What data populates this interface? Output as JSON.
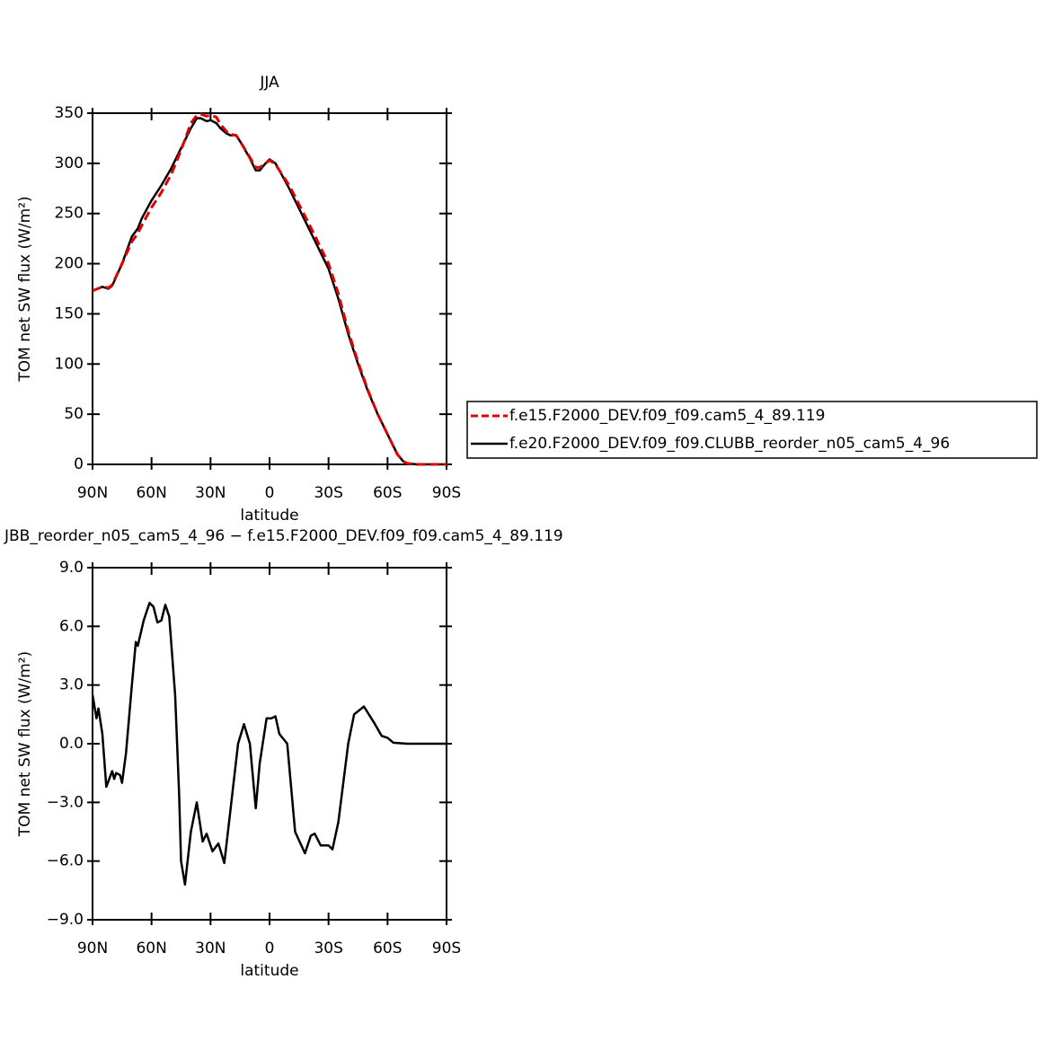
{
  "chart_data": [
    {
      "type": "line",
      "title": "JJA",
      "xlabel": "latitude",
      "ylabel": "TOM net SW flux (W/m²)",
      "x": [
        90,
        85,
        82,
        80,
        75,
        70,
        67,
        65,
        60,
        55,
        50,
        45,
        40,
        37,
        35,
        32,
        30,
        27,
        25,
        22,
        20,
        17,
        15,
        10,
        7,
        5,
        2,
        0,
        -3,
        -5,
        -10,
        -15,
        -20,
        -25,
        -30,
        -35,
        -40,
        -45,
        -50,
        -55,
        -60,
        -65,
        -68,
        -70,
        -75,
        -80,
        -90
      ],
      "xlim": [
        90,
        -90
      ],
      "xticks": [
        {
          "value": 90,
          "label": "90N"
        },
        {
          "value": 60,
          "label": "60N"
        },
        {
          "value": 30,
          "label": "30N"
        },
        0,
        {
          "value": -30,
          "label": "30S"
        },
        {
          "value": -60,
          "label": "60S"
        },
        {
          "value": -90,
          "label": "90S"
        }
      ],
      "ylim": [
        0,
        350
      ],
      "yticks": [
        0,
        50,
        100,
        150,
        200,
        250,
        300,
        350
      ],
      "series": [
        {
          "name": "f.e15.F2000_DEV.f09_f09.cam5_4_89.119",
          "color": "#e00000",
          "style": "dashed",
          "values": [
            173,
            177,
            176,
            179,
            200,
            222,
            230,
            238,
            256,
            271,
            289,
            313,
            340,
            348,
            349,
            347,
            348,
            346,
            339,
            332,
            329,
            328,
            322,
            306,
            296,
            296,
            300,
            303,
            299,
            293,
            278,
            259,
            240,
            220,
            200,
            170,
            133,
            102,
            74,
            50,
            30,
            10,
            3,
            1,
            0,
            0,
            0
          ]
        },
        {
          "name": "f.e20.F2000_DEV.f09_f09.CLUBB_reorder_n05_cam5_4_96",
          "color": "#000000",
          "style": "solid",
          "values": [
            173,
            177,
            175,
            178,
            200,
            227,
            235,
            245,
            263,
            278,
            295,
            315,
            335,
            345,
            345,
            342,
            343,
            340,
            335,
            330,
            328,
            328,
            322,
            305,
            293,
            293,
            300,
            304,
            300,
            293,
            275,
            255,
            235,
            215,
            195,
            165,
            130,
            100,
            73,
            50,
            30,
            10,
            3,
            1,
            0,
            0,
            0
          ]
        }
      ]
    },
    {
      "type": "line",
      "title": "JBB_reorder_n05_cam5_4_96 − f.e15.F2000_DEV.f09_f09.cam5_4_89.119",
      "xlabel": "latitude",
      "ylabel": "TOM net SW flux (W/m²)",
      "x": [
        90,
        88,
        87,
        85,
        83,
        80,
        79,
        78,
        76,
        75,
        73,
        70,
        68,
        67,
        64,
        61,
        59,
        57,
        55,
        53,
        51,
        48,
        46,
        45,
        43,
        40,
        37,
        34,
        32,
        29,
        26,
        23,
        20,
        16,
        13,
        10,
        7,
        5,
        1.5,
        -1,
        -3,
        -5,
        -9,
        -13,
        -18,
        -21,
        -23,
        -26,
        -30,
        -32,
        -35,
        -40,
        -43,
        -48,
        -53,
        -57,
        -60,
        -63,
        -70,
        -90
      ],
      "xlim": [
        90,
        -90
      ],
      "xticks": [
        {
          "value": 90,
          "label": "90N"
        },
        {
          "value": 60,
          "label": "60N"
        },
        {
          "value": 30,
          "label": "30N"
        },
        0,
        {
          "value": -30,
          "label": "30S"
        },
        {
          "value": -60,
          "label": "60S"
        },
        {
          "value": -90,
          "label": "90S"
        }
      ],
      "ylim": [
        -9,
        9
      ],
      "yticks": [
        {
          "value": 9,
          "label": "9.0"
        },
        {
          "value": 6,
          "label": "6.0"
        },
        {
          "value": 3,
          "label": "3.0"
        },
        {
          "value": 0,
          "label": "0.0"
        },
        {
          "value": -3,
          "label": "−3.0"
        },
        {
          "value": -6,
          "label": "−6.0"
        },
        {
          "value": -9,
          "label": "−9.0"
        }
      ],
      "series": [
        {
          "color": "#000000",
          "style": "solid",
          "values": [
            2.5,
            1.3,
            1.8,
            0.5,
            -2.2,
            -1.4,
            -1.8,
            -1.5,
            -1.6,
            -2,
            -0.5,
            3,
            5.2,
            5.0,
            6.3,
            7.2,
            7,
            6.2,
            6.3,
            7.1,
            6.5,
            2.5,
            -2.5,
            -6,
            -7.2,
            -4.5,
            -3,
            -5,
            -4.6,
            -5.5,
            -5.1,
            -6.1,
            -3.5,
            0,
            1,
            0,
            -3.3,
            -1,
            1.3,
            1.3,
            1.4,
            0.5,
            0,
            -4.5,
            -5.6,
            -4.7,
            -4.6,
            -5.2,
            -5.2,
            -5.4,
            -4,
            0,
            1.5,
            1.9,
            1.1,
            0.4,
            0.3,
            0.05,
            0,
            0
          ]
        }
      ]
    }
  ]
}
